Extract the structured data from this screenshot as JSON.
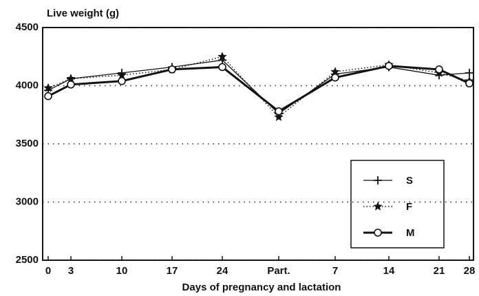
{
  "chart_data": {
    "type": "line",
    "title": "Live weight (g)",
    "x_label": "Days of pregnancy and lactation",
    "categories": [
      "0",
      "3",
      "10",
      "17",
      "24",
      "Part.",
      "7",
      "14",
      "21",
      "28"
    ],
    "ylim": [
      2500,
      4500
    ],
    "yticks": [
      2500,
      3000,
      3500,
      4000,
      4500
    ],
    "grid": true,
    "legend": "lower right",
    "series": [
      {
        "name": "S",
        "color": "#111111",
        "marker": "plus",
        "line_style": "solid",
        "values": [
          3960,
          4060,
          4110,
          4160,
          4220,
          3760,
          4100,
          4160,
          4090,
          4110
        ]
      },
      {
        "name": "F",
        "color": "#111111",
        "marker": "star",
        "line_style": "dotted",
        "values": [
          3980,
          4060,
          4090,
          4140,
          4250,
          3730,
          4120,
          4180,
          4110,
          4040
        ]
      },
      {
        "name": "M",
        "color": "#111111",
        "marker": "circle",
        "line_style": "thick",
        "values": [
          3910,
          4010,
          4040,
          4140,
          4160,
          3780,
          4070,
          4170,
          4140,
          4020
        ]
      }
    ]
  }
}
